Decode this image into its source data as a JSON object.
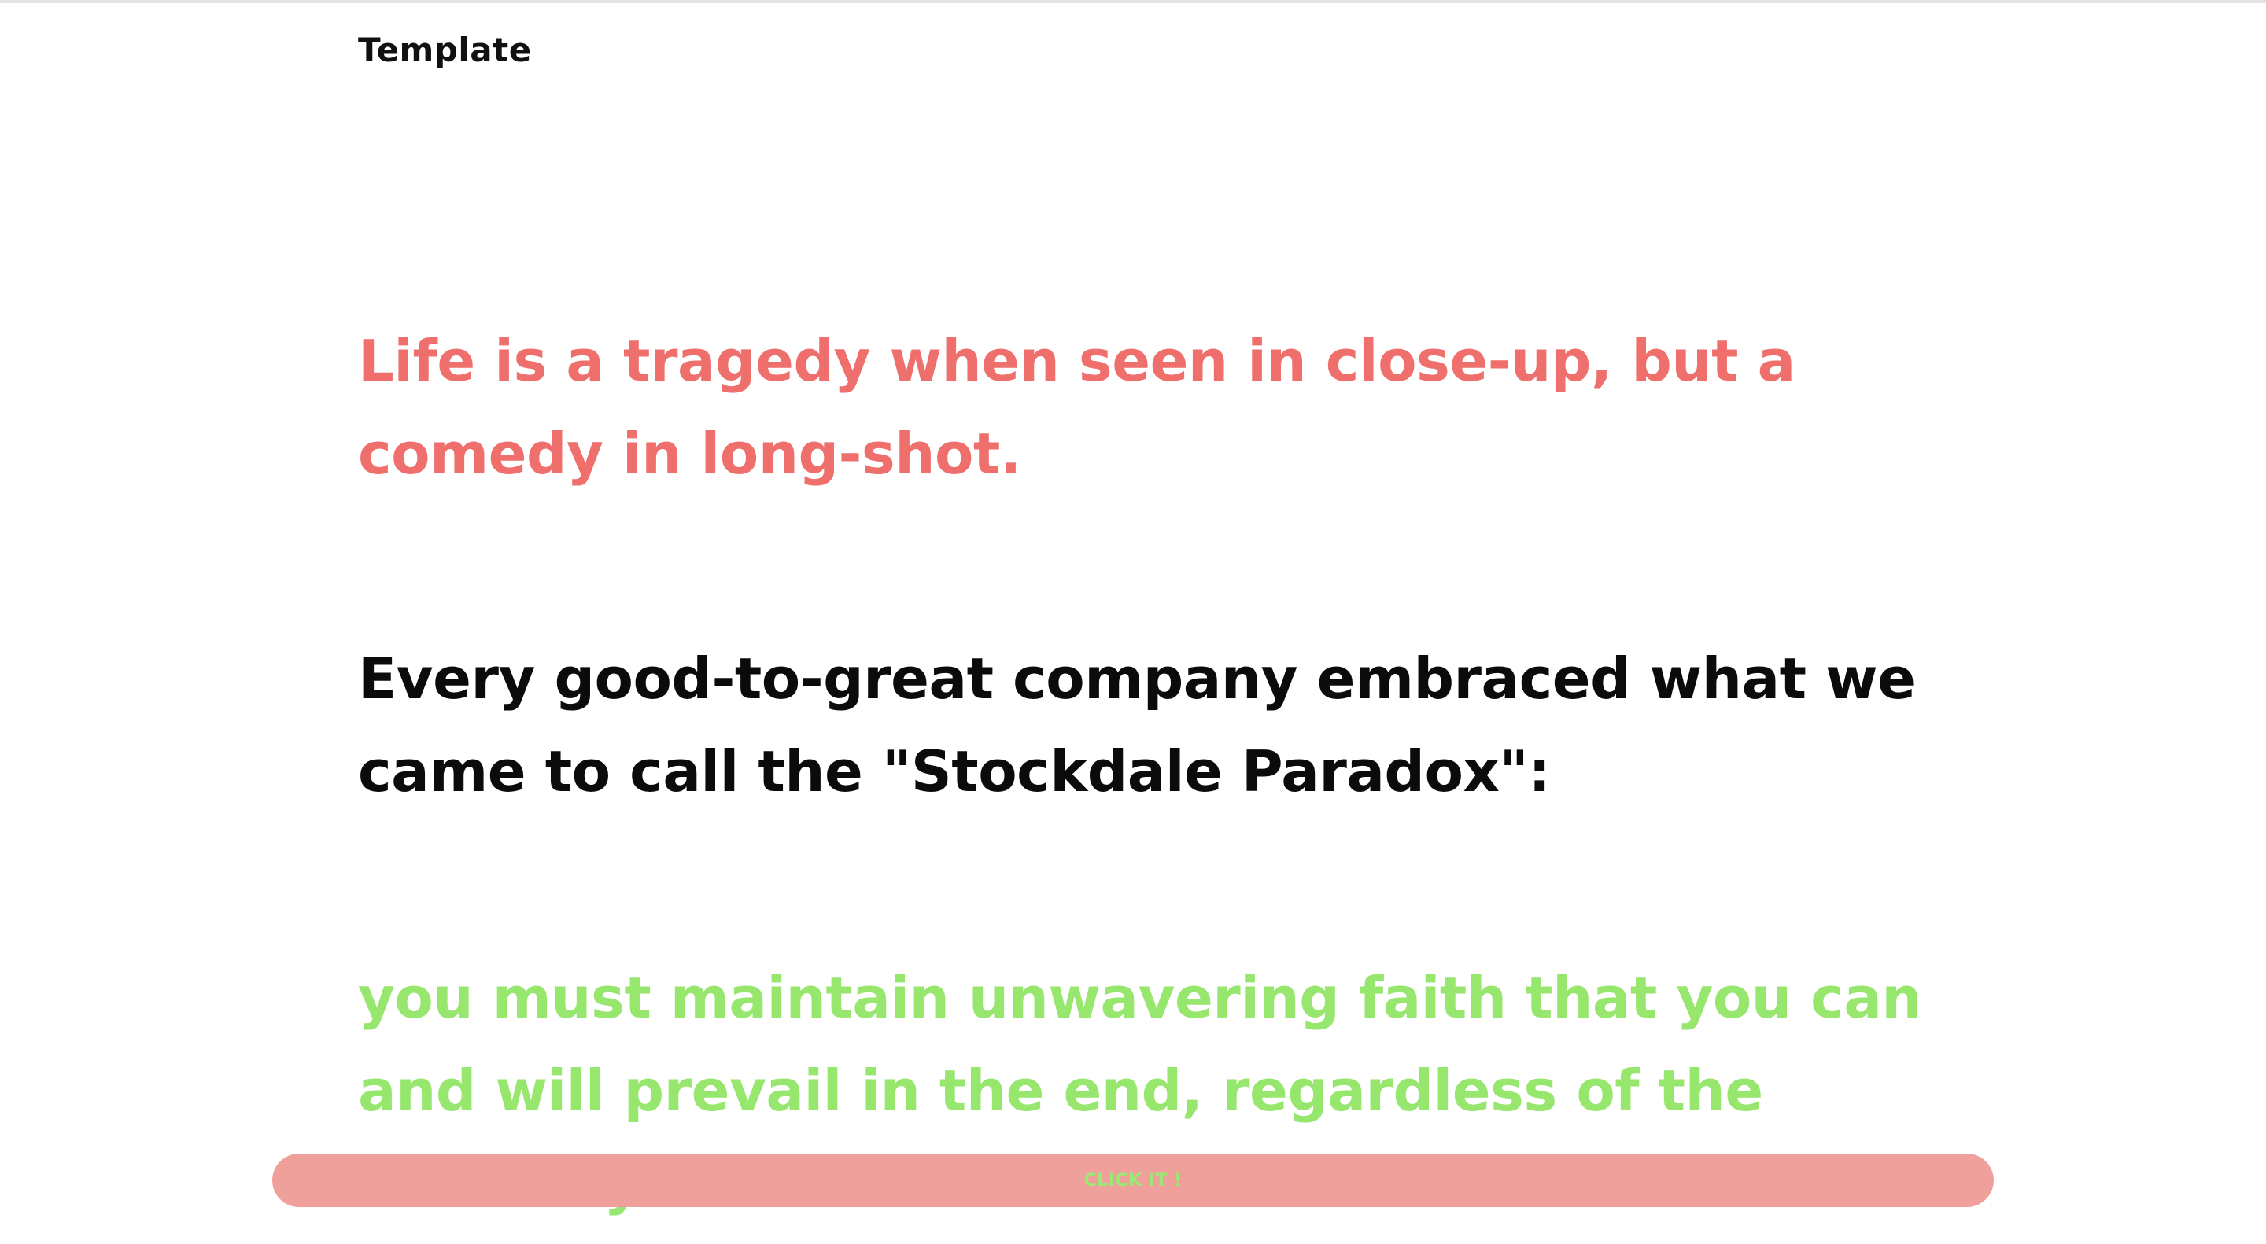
{
  "header": {
    "title": "Template"
  },
  "quotes": [
    {
      "text": "Life is a tragedy when seen in close-up, but a comedy in long-shot.",
      "color": "#ef6f6c"
    },
    {
      "text": "Every good-to-great company embraced what we came to call the \"Stockdale Paradox\":",
      "color": "#0b0b0b"
    },
    {
      "text": "you must maintain unwavering faith that you can and will prevail in the end, regardless of the difficulty",
      "color": "#97e66d"
    }
  ],
  "cta": {
    "label": "CLICK IT !",
    "background": "#f0a09b",
    "text_color": "#9be874"
  }
}
